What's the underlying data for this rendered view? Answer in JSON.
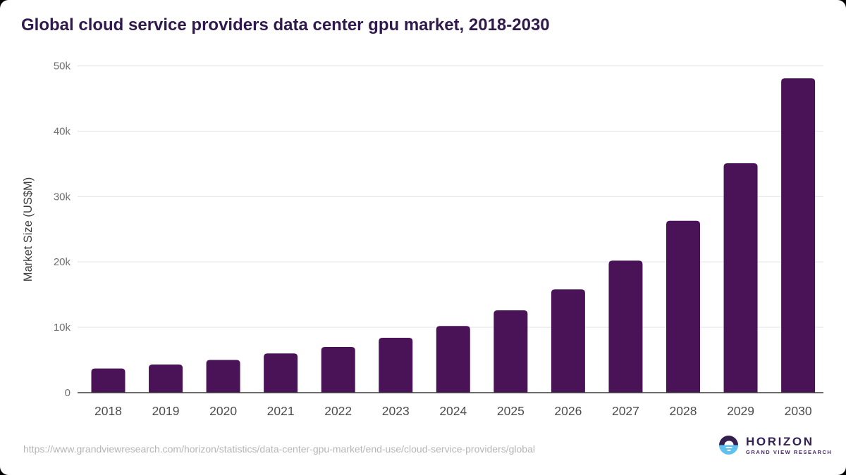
{
  "page": {
    "title": "Global cloud service providers data center gpu market, 2018-2030"
  },
  "chart_data": {
    "type": "bar",
    "title": "Global cloud service providers data center gpu market, 2018-2030",
    "categories": [
      "2018",
      "2019",
      "2020",
      "2021",
      "2022",
      "2023",
      "2024",
      "2025",
      "2026",
      "2027",
      "2028",
      "2029",
      "2030"
    ],
    "values": [
      3700,
      4300,
      5000,
      6000,
      7000,
      8400,
      10200,
      12600,
      15800,
      20200,
      26300,
      35100,
      48100
    ],
    "xlabel": "",
    "ylabel": "Market Size (US$M)",
    "ylim": [
      0,
      50000
    ],
    "ytick_values": [
      0,
      10000,
      20000,
      30000,
      40000,
      50000
    ],
    "ytick_labels": [
      "0",
      "10k",
      "20k",
      "30k",
      "40k",
      "50k"
    ],
    "grid": "horizontal",
    "legend": "none",
    "bar_color": "#4a1358"
  },
  "footer": {
    "source_url": "https://www.grandviewresearch.com/horizon/statistics/data-center-gpu-market/end-use/cloud-service-providers/global",
    "logo": {
      "name": "HORIZON",
      "subtitle": "GRAND VIEW RESEARCH"
    }
  },
  "colors": {
    "bar": "#4a1358",
    "title": "#301a4d",
    "grid": "#e9e9ed",
    "axis": "#3b3b3b",
    "ytick": "#6f6f6f",
    "xtick": "#4d4d4d",
    "ylabel": "#3d3d3d",
    "url": "#b5b5b5",
    "logo_purple": "#34204f",
    "logo_blue": "#5ec1f0"
  }
}
